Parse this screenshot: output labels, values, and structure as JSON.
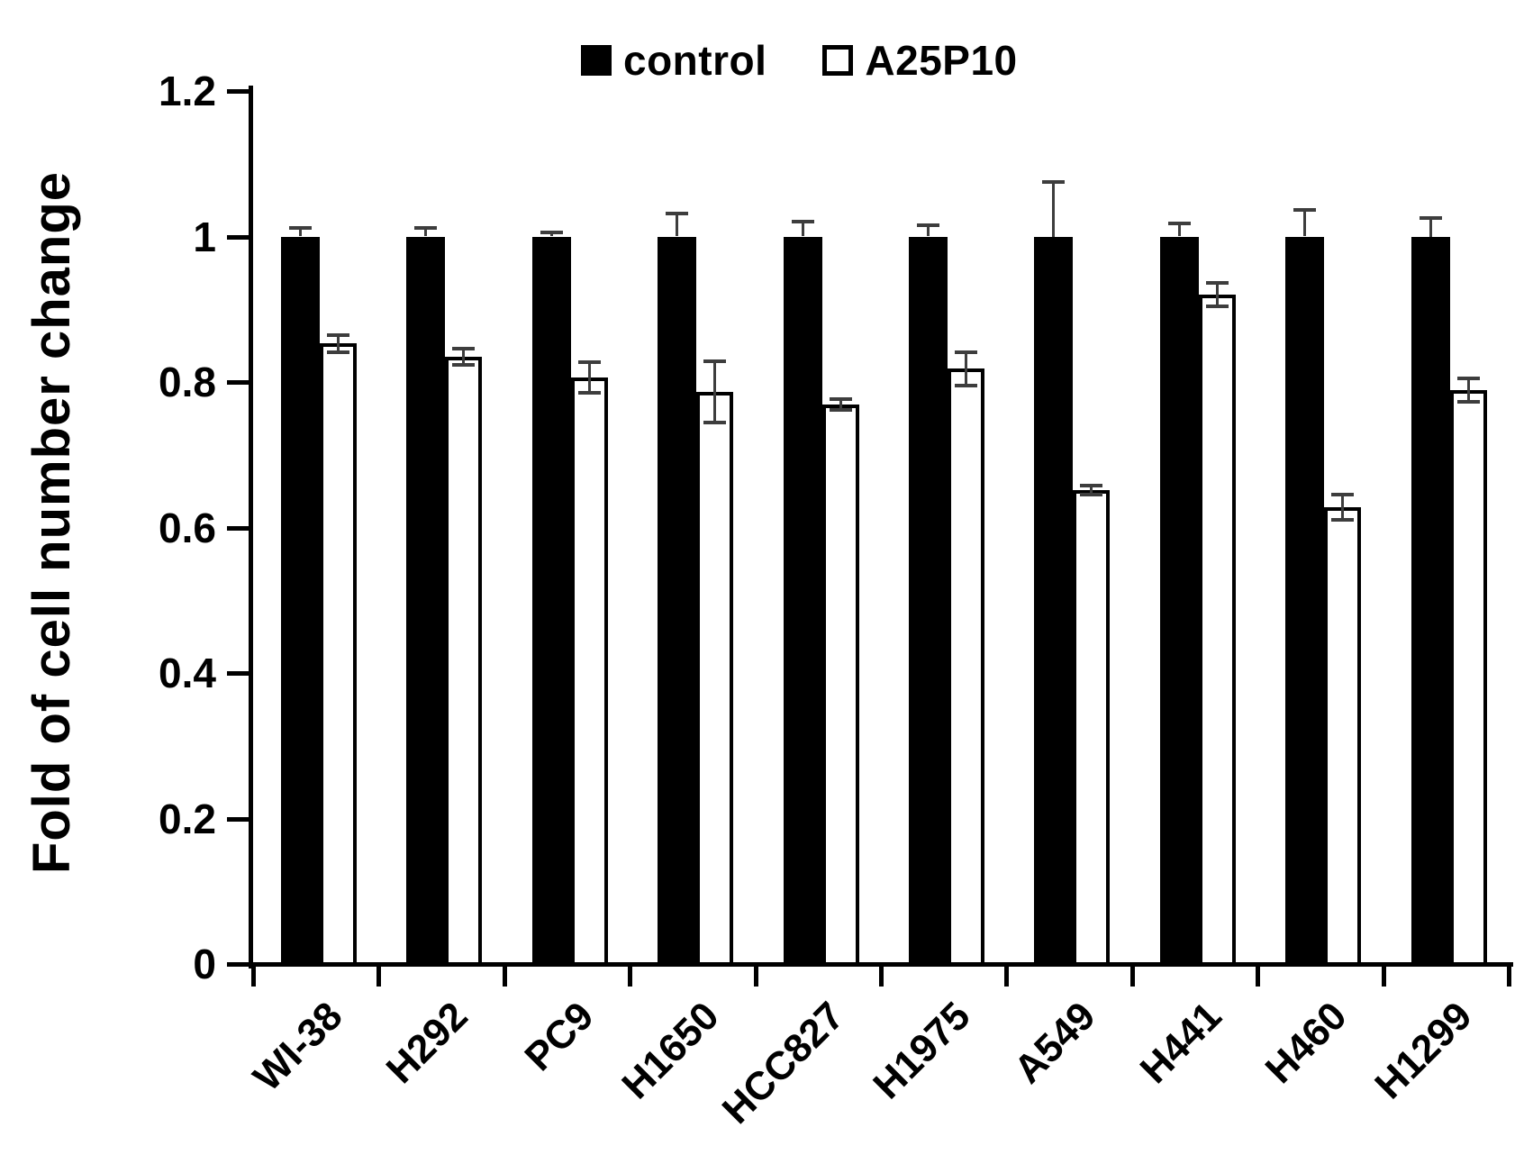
{
  "figure": {
    "background": "#ffffff",
    "bar_fill_control": "#000000",
    "bar_fill_treated": "#ffffff",
    "bar_outline": "#000000",
    "error_bar_color": "#3d3d3d"
  },
  "legend": [
    {
      "label": "control",
      "swatch": "filled-black-square"
    },
    {
      "label": "A25P10",
      "swatch": "open-white-square"
    }
  ],
  "chart_data": {
    "type": "bar",
    "title": "",
    "xlabel": "",
    "ylabel": "Fold of cell number change",
    "ylim": [
      0,
      1.2
    ],
    "yticks": [
      0,
      0.2,
      0.4,
      0.6,
      0.8,
      1,
      1.2
    ],
    "ytick_labels": [
      "0",
      "0.2",
      "0.4",
      "0.6",
      "0.8",
      "1",
      "1.2"
    ],
    "grid": false,
    "legend_position": "top-center",
    "categories": [
      "WI-38",
      "H292",
      "PC9",
      "H1650",
      "HCC827",
      "H1975",
      "A549",
      "H441",
      "H460",
      "H1299"
    ],
    "series": [
      {
        "name": "control",
        "fill": "#000000",
        "values": [
          1.0,
          1.0,
          1.0,
          1.0,
          1.0,
          1.0,
          1.0,
          1.0,
          1.0,
          1.0
        ],
        "errors": [
          0.012,
          0.012,
          0.005,
          0.031,
          0.021,
          0.015,
          0.075,
          0.018,
          0.037,
          0.025
        ]
      },
      {
        "name": "A25P10",
        "fill": "#ffffff",
        "values": [
          0.853,
          0.835,
          0.806,
          0.786,
          0.769,
          0.818,
          0.651,
          0.92,
          0.628,
          0.789
        ],
        "errors": [
          0.012,
          0.011,
          0.021,
          0.042,
          0.008,
          0.023,
          0.006,
          0.016,
          0.017,
          0.016
        ]
      }
    ]
  }
}
